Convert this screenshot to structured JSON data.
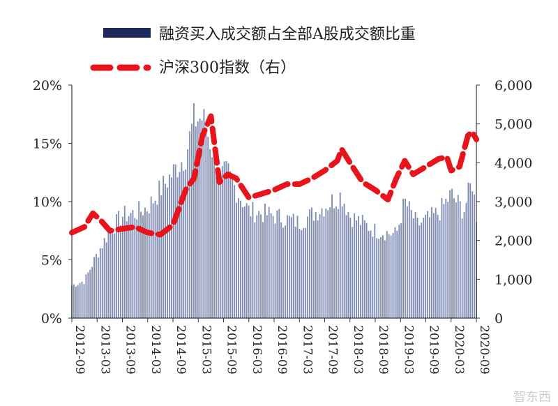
{
  "chart_data": {
    "type": "bar+line",
    "legend": {
      "bar_label": "融资买入成交额占全部A股成交额比重",
      "line_label": "沪深300指数（右）",
      "placement": "top"
    },
    "colors": {
      "bar": "#7f8cb4",
      "bar_legend": "#1f2a5c",
      "line": "#e8141b",
      "axis": "#333333"
    },
    "left_axis": {
      "ticks": [
        "0%",
        "5%",
        "10%",
        "15%",
        "20%"
      ],
      "ylim": [
        0,
        20
      ],
      "unit": "%"
    },
    "right_axis": {
      "ticks": [
        "0",
        "1,000",
        "2,000",
        "3,000",
        "4,000",
        "5,000",
        "6,000"
      ],
      "ylim": [
        0,
        6000
      ]
    },
    "x_ticks": [
      "2012-09",
      "2013-03",
      "2013-09",
      "2014-03",
      "2014-09",
      "2015-03",
      "2015-09",
      "2016-03",
      "2016-09",
      "2017-03",
      "2017-09",
      "2018-03",
      "2018-09",
      "2019-03",
      "2019-09",
      "2020-03",
      "2020-09"
    ],
    "x_range": [
      "2012-09",
      "2020-09"
    ],
    "bar_series": {
      "name": "融资买入成交额占全部A股成交额比重",
      "anchors": [
        [
          "2012-09",
          2.8
        ],
        [
          "2012-12",
          3.2
        ],
        [
          "2013-03",
          5.5
        ],
        [
          "2013-06",
          7.5
        ],
        [
          "2013-09",
          8.8
        ],
        [
          "2013-12",
          9.0
        ],
        [
          "2014-03",
          9.5
        ],
        [
          "2014-06",
          11.0
        ],
        [
          "2014-09",
          12.5
        ],
        [
          "2014-12",
          14.0
        ],
        [
          "2015-02",
          17.0
        ],
        [
          "2015-04",
          17.2
        ],
        [
          "2015-06",
          15.0
        ],
        [
          "2015-08",
          12.0
        ],
        [
          "2015-10",
          12.5
        ],
        [
          "2015-12",
          11.0
        ],
        [
          "2016-03",
          9.2
        ],
        [
          "2016-09",
          8.8
        ],
        [
          "2017-03",
          8.2
        ],
        [
          "2017-09",
          9.6
        ],
        [
          "2018-01",
          10.6
        ],
        [
          "2018-03",
          8.8
        ],
        [
          "2018-09",
          7.5
        ],
        [
          "2019-02",
          7.2
        ],
        [
          "2019-04",
          10.0
        ],
        [
          "2019-07",
          8.0
        ],
        [
          "2019-12",
          9.0
        ],
        [
          "2020-03",
          10.6
        ],
        [
          "2020-06",
          9.2
        ],
        [
          "2020-08",
          11.8
        ],
        [
          "2020-09",
          8.8
        ]
      ]
    },
    "line_series": {
      "name": "沪深300指数（右）",
      "style": "dashed",
      "points": [
        [
          "2012-09",
          2200
        ],
        [
          "2012-12",
          2350
        ],
        [
          "2013-02",
          2700
        ],
        [
          "2013-04",
          2500
        ],
        [
          "2013-06",
          2250
        ],
        [
          "2013-09",
          2300
        ],
        [
          "2013-12",
          2350
        ],
        [
          "2014-03",
          2200
        ],
        [
          "2014-06",
          2150
        ],
        [
          "2014-09",
          2400
        ],
        [
          "2014-12",
          3300
        ],
        [
          "2015-02",
          3600
        ],
        [
          "2015-04",
          4700
        ],
        [
          "2015-06",
          5200
        ],
        [
          "2015-08",
          3500
        ],
        [
          "2015-10",
          3700
        ],
        [
          "2015-12",
          3600
        ],
        [
          "2016-03",
          3100
        ],
        [
          "2016-06",
          3200
        ],
        [
          "2016-09",
          3300
        ],
        [
          "2016-12",
          3450
        ],
        [
          "2017-03",
          3450
        ],
        [
          "2017-06",
          3600
        ],
        [
          "2017-09",
          3800
        ],
        [
          "2017-12",
          4050
        ],
        [
          "2018-01",
          4350
        ],
        [
          "2018-03",
          4000
        ],
        [
          "2018-06",
          3500
        ],
        [
          "2018-09",
          3300
        ],
        [
          "2018-12",
          3050
        ],
        [
          "2019-02",
          3600
        ],
        [
          "2019-04",
          4050
        ],
        [
          "2019-06",
          3700
        ],
        [
          "2019-09",
          3900
        ],
        [
          "2019-12",
          4100
        ],
        [
          "2020-02",
          4150
        ],
        [
          "2020-03",
          3800
        ],
        [
          "2020-05",
          3900
        ],
        [
          "2020-07",
          4700
        ],
        [
          "2020-08",
          4800
        ],
        [
          "2020-09",
          4600
        ]
      ]
    },
    "grid": false
  },
  "watermark": "智东西"
}
